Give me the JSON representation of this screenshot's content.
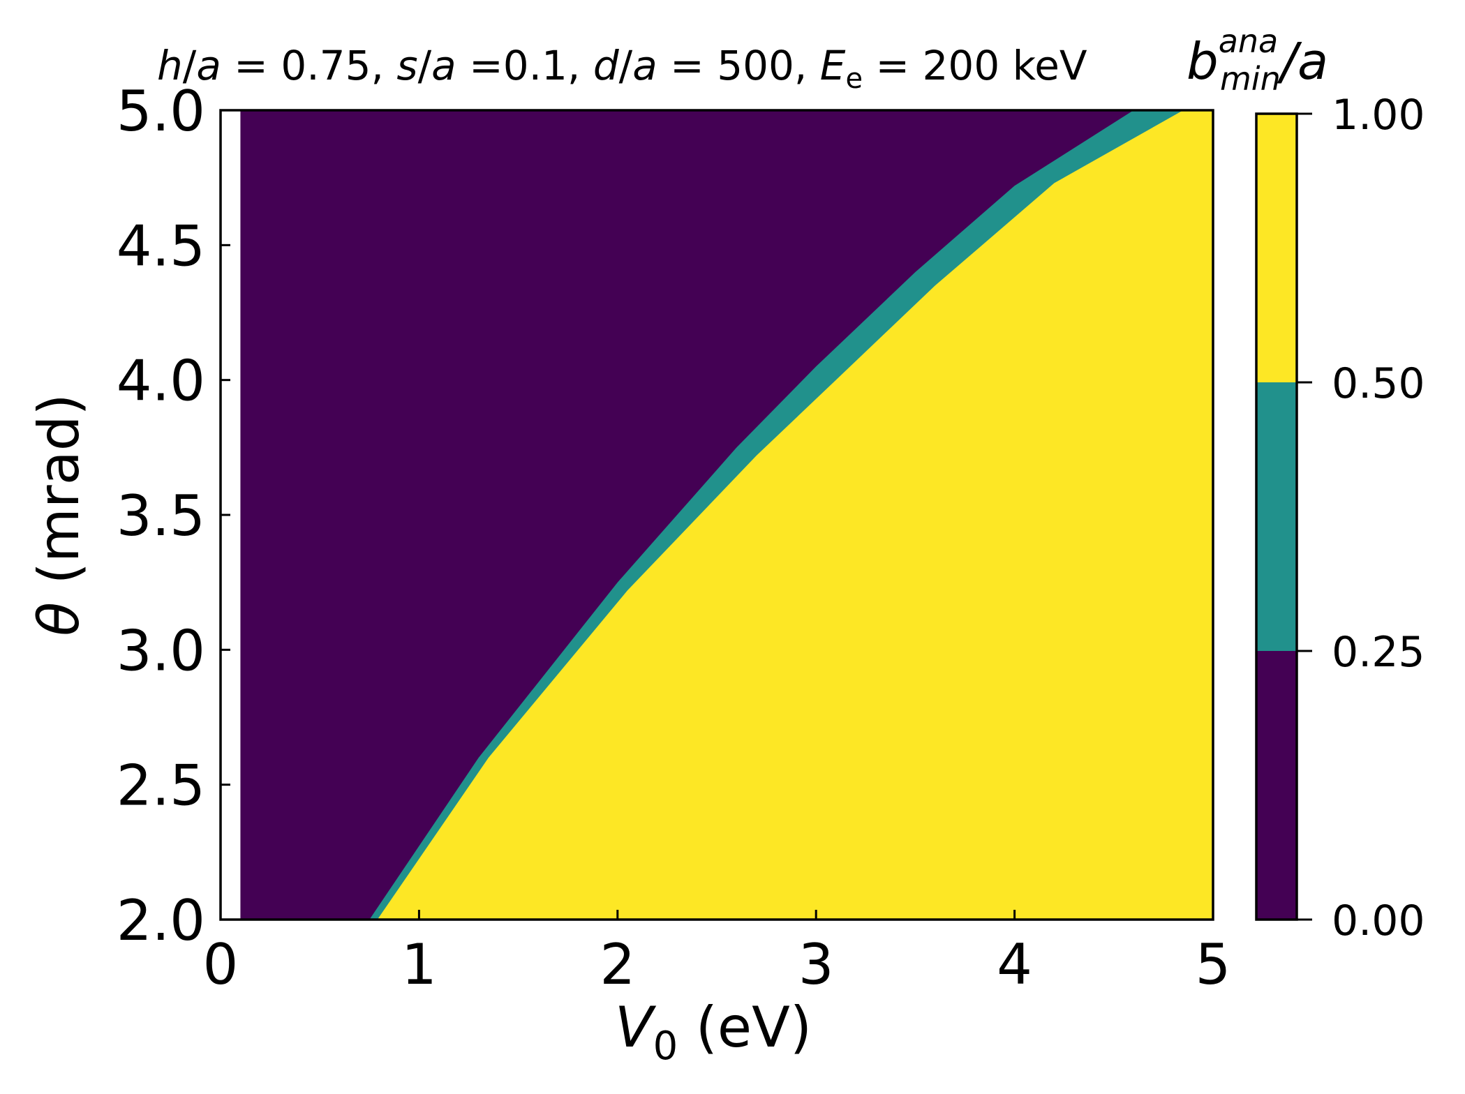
{
  "figure": {
    "title_parts": [
      {
        "text": "h",
        "italic": true
      },
      {
        "text": "/",
        "italic": false
      },
      {
        "text": "a",
        "italic": true
      },
      {
        "text": " = 0.75, ",
        "italic": false
      },
      {
        "text": "s",
        "italic": true
      },
      {
        "text": "/",
        "italic": false
      },
      {
        "text": "a",
        "italic": true
      },
      {
        "text": " =0.1, ",
        "italic": false
      },
      {
        "text": "d",
        "italic": true
      },
      {
        "text": "/",
        "italic": false
      },
      {
        "text": "a",
        "italic": true
      },
      {
        "text": " = 500, ",
        "italic": false
      },
      {
        "text": "E",
        "italic": true
      },
      {
        "text": "e",
        "italic": false,
        "sub": true
      },
      {
        "text": " = 200 keV",
        "italic": false
      }
    ]
  },
  "chart_data": {
    "type": "heatmap",
    "xlabel": "(eV)",
    "xlabel_symbol": "V",
    "xlabel_sub": "0",
    "ylabel": "(mrad)",
    "ylabel_symbol": "θ",
    "xlim": [
      0,
      5
    ],
    "ylim": [
      2.0,
      5.0
    ],
    "x_ticks": [
      "0",
      "1",
      "2",
      "3",
      "4",
      "5"
    ],
    "y_ticks": [
      "2.0",
      "2.5",
      "3.0",
      "3.5",
      "4.0",
      "4.5",
      "5.0"
    ],
    "data_x_start": 0.1,
    "levels": [
      0.0,
      0.25,
      0.5,
      1.0
    ],
    "level_colors": [
      "#440154",
      "#21918c",
      "#fde725"
    ],
    "boundaries": [
      {
        "name": "0.25 contour",
        "points": [
          [
            0.75,
            2.0
          ],
          [
            1.3,
            2.6
          ],
          [
            2.0,
            3.25
          ],
          [
            2.6,
            3.75
          ],
          [
            3.0,
            4.05
          ],
          [
            3.5,
            4.4
          ],
          [
            4.0,
            4.72
          ],
          [
            4.6,
            5.0
          ]
        ]
      },
      {
        "name": "0.50 contour",
        "points": [
          [
            0.79,
            2.0
          ],
          [
            1.35,
            2.6
          ],
          [
            2.05,
            3.22
          ],
          [
            2.7,
            3.72
          ],
          [
            3.1,
            4.0
          ],
          [
            3.6,
            4.35
          ],
          [
            4.2,
            4.73
          ],
          [
            4.85,
            5.0
          ]
        ]
      }
    ],
    "colorbar": {
      "label_symbol": "b",
      "label_sup": "ana",
      "label_sub": "min",
      "label_suffix": "/a",
      "ticks": [
        "0.00",
        "0.25",
        "0.50",
        "1.00"
      ]
    }
  }
}
